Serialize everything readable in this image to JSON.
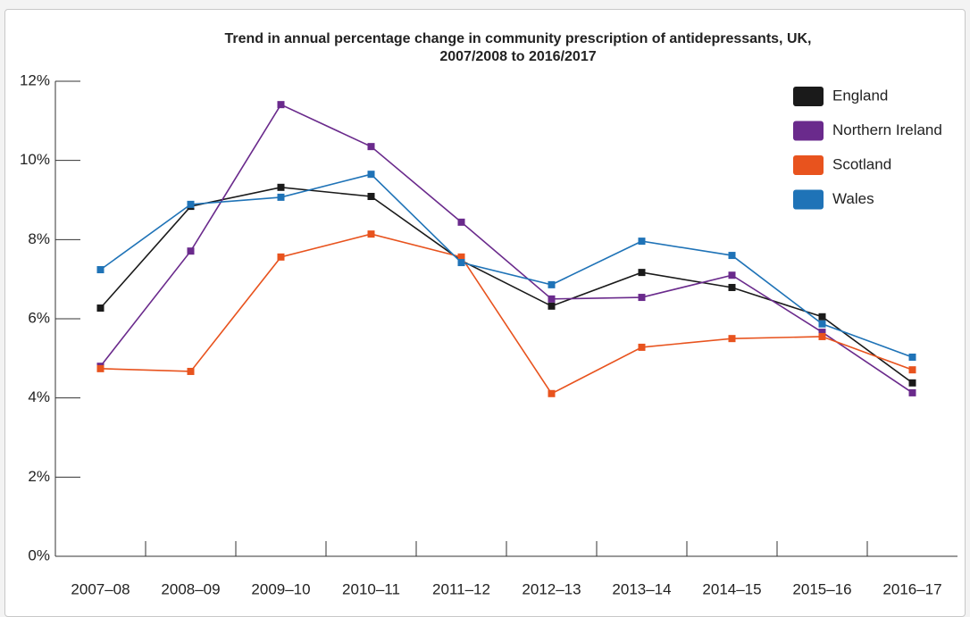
{
  "chart_data": {
    "type": "line",
    "title": [
      "Trend in annual percentage change in community prescription of antidepressants, UK,",
      "2007/2008 to 2016/2017"
    ],
    "categories": [
      "2007–08",
      "2008–09",
      "2009–10",
      "2010–11",
      "2011–12",
      "2012–13",
      "2013–14",
      "2014–15",
      "2015–16",
      "2016–17"
    ],
    "series": [
      {
        "name": "England",
        "color": "#1a1a1a",
        "values": [
          6.27,
          8.84,
          9.32,
          9.09,
          7.47,
          6.32,
          7.17,
          6.79,
          6.05,
          4.38
        ]
      },
      {
        "name": "Northern Ireland",
        "color": "#6a2a8c",
        "values": [
          4.8,
          7.71,
          11.41,
          10.35,
          8.44,
          6.5,
          6.54,
          7.1,
          5.66,
          4.13
        ]
      },
      {
        "name": "Scotland",
        "color": "#e8531e",
        "values": [
          4.74,
          4.67,
          7.56,
          8.14,
          7.56,
          4.11,
          5.28,
          5.5,
          5.55,
          4.71
        ]
      },
      {
        "name": "Wales",
        "color": "#1f73b7",
        "values": [
          7.24,
          8.89,
          9.07,
          9.65,
          7.42,
          6.86,
          7.96,
          7.6,
          5.87,
          5.03
        ]
      }
    ],
    "ylim": [
      0,
      12
    ],
    "yticks": [
      {
        "value": 0,
        "label": "0%"
      },
      {
        "value": 2,
        "label": "2%"
      },
      {
        "value": 4,
        "label": "4%"
      },
      {
        "value": 6,
        "label": "6%"
      },
      {
        "value": 8,
        "label": "8%"
      },
      {
        "value": 10,
        "label": "10%"
      },
      {
        "value": 12,
        "label": "12%"
      }
    ],
    "legend": "top-right"
  }
}
